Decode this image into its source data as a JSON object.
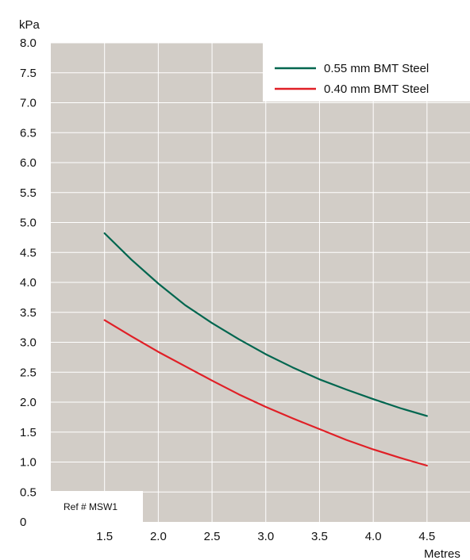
{
  "chart_data": {
    "type": "line",
    "ylabel": "kPa",
    "xlabel": "Metres",
    "xlim": [
      1.0,
      4.9
    ],
    "ylim": [
      0,
      8.0
    ],
    "x_ticks": [
      "1.5",
      "2.0",
      "2.5",
      "3.0",
      "3.5",
      "4.0",
      "4.5"
    ],
    "x_tick_values": [
      1.5,
      2.0,
      2.5,
      3.0,
      3.5,
      4.0,
      4.5
    ],
    "y_ticks": [
      "0",
      "0.5",
      "1.0",
      "1.5",
      "2.0",
      "2.5",
      "3.0",
      "3.5",
      "4.0",
      "4.5",
      "5.0",
      "5.5",
      "6.0",
      "6.5",
      "7.0",
      "7.5",
      "8.0"
    ],
    "y_tick_values": [
      0,
      0.5,
      1.0,
      1.5,
      2.0,
      2.5,
      3.0,
      3.5,
      4.0,
      4.5,
      5.0,
      5.5,
      6.0,
      6.5,
      7.0,
      7.5,
      8.0
    ],
    "grid": true,
    "legend_position": "top-right",
    "series": [
      {
        "name": "0.55 mm BMT Steel",
        "color": "#00664f",
        "x": [
          1.5,
          1.75,
          2.0,
          2.25,
          2.5,
          2.75,
          3.0,
          3.25,
          3.5,
          3.75,
          4.0,
          4.25,
          4.5
        ],
        "y": [
          4.82,
          4.38,
          3.98,
          3.62,
          3.32,
          3.05,
          2.8,
          2.58,
          2.38,
          2.21,
          2.05,
          1.9,
          1.77
        ]
      },
      {
        "name": "0.40 mm BMT Steel",
        "color": "#e01f26",
        "x": [
          1.5,
          1.75,
          2.0,
          2.25,
          2.5,
          2.75,
          3.0,
          3.25,
          3.5,
          3.75,
          4.0,
          4.25,
          4.5
        ],
        "y": [
          3.37,
          3.1,
          2.84,
          2.6,
          2.36,
          2.13,
          1.92,
          1.73,
          1.55,
          1.37,
          1.21,
          1.07,
          0.94
        ]
      }
    ],
    "annotations": [
      "Ref # MSW1"
    ],
    "colors": {
      "plot_background": "#d2cdc7",
      "grid": "#ffffff"
    }
  }
}
